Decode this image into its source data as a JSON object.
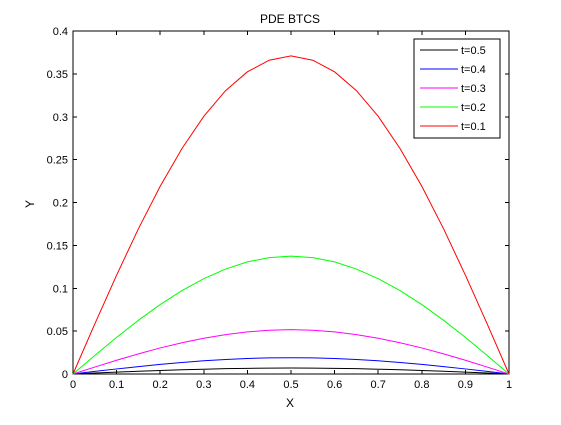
{
  "chart_data": {
    "type": "line",
    "title": "PDE BTCS",
    "xlabel": "X",
    "ylabel": "Y",
    "xlim": [
      0,
      1
    ],
    "ylim": [
      0,
      0.4
    ],
    "xticks": [
      "0",
      "0.1",
      "0.2",
      "0.3",
      "0.4",
      "0.5",
      "0.6",
      "0.7",
      "0.8",
      "0.9",
      "1"
    ],
    "yticks": [
      "0",
      "0.05",
      "0.1",
      "0.15",
      "0.2",
      "0.25",
      "0.3",
      "0.35",
      "0.4"
    ],
    "grid": false,
    "legend_position": "top-right",
    "x": [
      0,
      0.05,
      0.1,
      0.15,
      0.2,
      0.25,
      0.3,
      0.35,
      0.4,
      0.45,
      0.5,
      0.55,
      0.6,
      0.65,
      0.7,
      0.75,
      0.8,
      0.85,
      0.9,
      0.95,
      1
    ],
    "series": [
      {
        "name": "t=0.5",
        "color": "#000000",
        "values": [
          0,
          0.0011,
          0.0022,
          0.0032,
          0.0041,
          0.0049,
          0.0056,
          0.0062,
          0.0066,
          0.0069,
          0.007,
          0.0069,
          0.0066,
          0.0062,
          0.0056,
          0.0049,
          0.0041,
          0.0032,
          0.0022,
          0.0011,
          0
        ]
      },
      {
        "name": "t=0.4",
        "color": "#0000ff",
        "values": [
          0,
          0.003,
          0.0059,
          0.0086,
          0.0112,
          0.0134,
          0.0154,
          0.0169,
          0.0181,
          0.0188,
          0.019,
          0.0188,
          0.0181,
          0.0169,
          0.0154,
          0.0134,
          0.0112,
          0.0086,
          0.0059,
          0.003,
          0
        ]
      },
      {
        "name": "t=0.3",
        "color": "#ff00ff",
        "values": [
          0,
          0.0081,
          0.016,
          0.0235,
          0.0304,
          0.0364,
          0.0417,
          0.0459,
          0.0491,
          0.051,
          0.0517,
          0.051,
          0.0491,
          0.0459,
          0.0417,
          0.0364,
          0.0304,
          0.0235,
          0.016,
          0.0081,
          0
        ]
      },
      {
        "name": "t=0.2",
        "color": "#00ff00",
        "values": [
          0,
          0.0216,
          0.0427,
          0.0626,
          0.081,
          0.0973,
          0.1112,
          0.1224,
          0.1307,
          0.1357,
          0.1375,
          0.1357,
          0.1307,
          0.1224,
          0.1112,
          0.0973,
          0.081,
          0.0626,
          0.0427,
          0.0216,
          0
        ]
      },
      {
        "name": "t=0.1",
        "color": "#ff0000",
        "values": [
          0,
          0.0584,
          0.1152,
          0.1693,
          0.2189,
          0.263,
          0.3005,
          0.3305,
          0.3524,
          0.3659,
          0.371,
          0.3659,
          0.3524,
          0.3305,
          0.3005,
          0.263,
          0.2189,
          0.1693,
          0.1152,
          0.0584,
          0
        ]
      }
    ]
  }
}
